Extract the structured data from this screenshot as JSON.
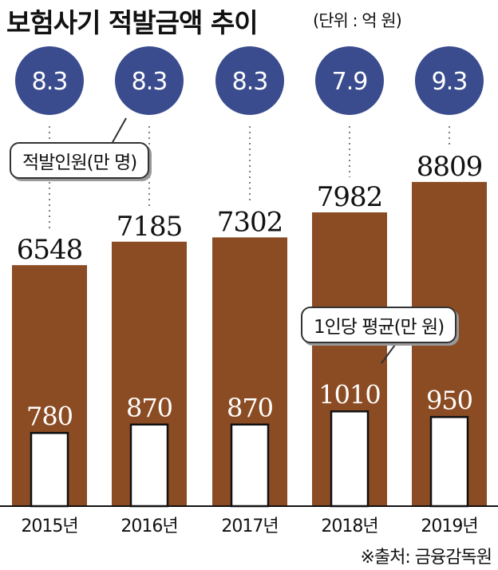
{
  "header": {
    "title": "보험사기 적발금액 추이",
    "unit": "(단위 : 억 원)"
  },
  "legend": {
    "count_label": "적발인원(만 명)",
    "avg_label": "1인당 평균(만 원)"
  },
  "source": "※출처: 금융감독원",
  "colors": {
    "amount_bar": "#8b4c24",
    "avg_bar": "#ffffff",
    "circle": "#3a4c8e"
  },
  "chart_data": {
    "type": "bar",
    "title": "보험사기 적발금액 추이",
    "categories": [
      "2015년",
      "2016년",
      "2017년",
      "2018년",
      "2019년"
    ],
    "series": [
      {
        "name": "",
        "values": [
          6548,
          7185,
          7302,
          7982,
          8809
        ]
      },
      {
        "name": "1인당 평균(만 원)",
        "values": [
          780,
          870,
          870,
          1010,
          950
        ]
      },
      {
        "name": "적발인원(만 명)",
        "values": [
          8.3,
          8.3,
          8.3,
          7.9,
          9.3
        ]
      }
    ],
    "circle_labels": [
      "8.3",
      "8.3",
      "8.3",
      "7.9",
      "9.3"
    ],
    "unit": "(단위 : 억 원)"
  }
}
